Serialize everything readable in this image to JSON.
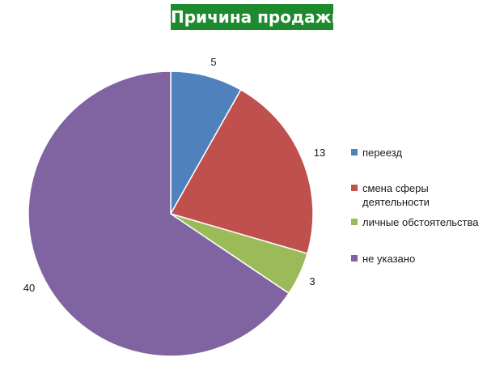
{
  "chart_data": {
    "type": "pie",
    "title": "Причина продажи",
    "categories": [
      "переезд",
      "смена сферы деятельности",
      "личные обстоятельства",
      "не указано"
    ],
    "values": [
      5,
      13,
      3,
      40
    ],
    "colors": [
      "#4f81bd",
      "#c0504d",
      "#9bbb59",
      "#8064a2"
    ],
    "data_labels": [
      "5",
      "13",
      "3",
      "40"
    ],
    "legend": {
      "position": "right",
      "items": [
        "переезд",
        "смена сферы деятельности",
        "личные обстоятельства",
        "не указано"
      ]
    }
  }
}
